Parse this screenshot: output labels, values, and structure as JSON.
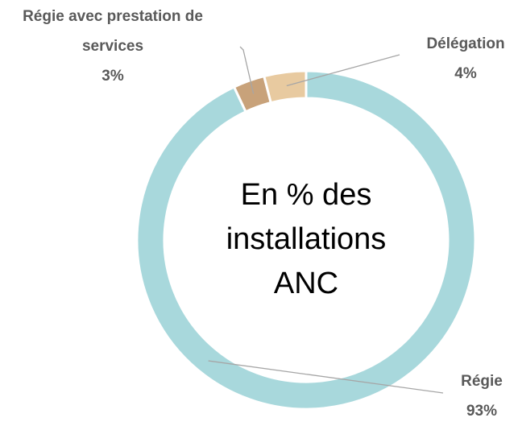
{
  "chart_data": {
    "type": "donut",
    "center_text": "En % des installations ANC",
    "categories": [
      "Régie",
      "Régie avec prestation de services",
      "Délégation"
    ],
    "values": [
      93,
      3,
      4
    ],
    "value_labels": [
      "93%",
      "3%",
      "4%"
    ],
    "colors": [
      "#a8d8dc",
      "#c8a27a",
      "#e8caa0"
    ]
  }
}
